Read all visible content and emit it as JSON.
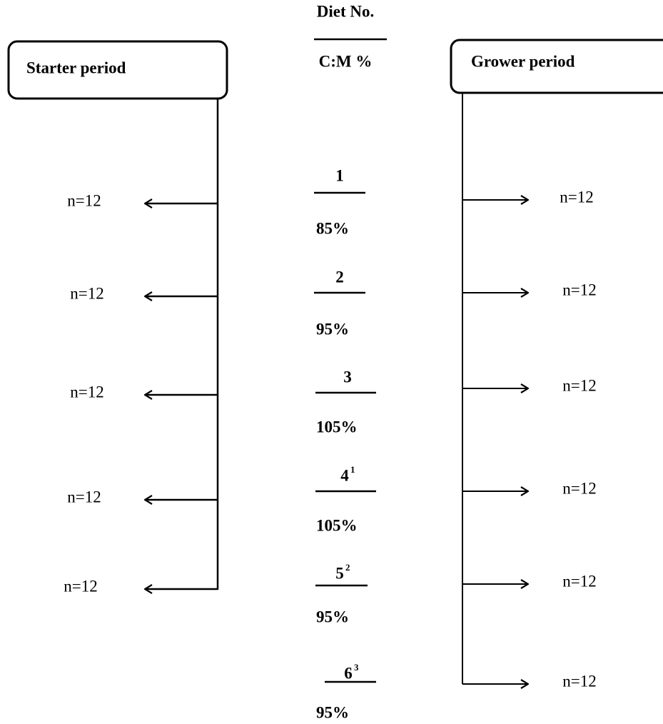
{
  "header": {
    "top": "Diet No.",
    "bottom": "C:M %"
  },
  "starter": {
    "title": "Starter period",
    "groups": [
      "n=12",
      "n=12",
      "n=12",
      "n=12",
      "n=12"
    ]
  },
  "grower": {
    "title": "Grower period",
    "groups": [
      "n=12",
      "n=12",
      "n=12",
      "n=12",
      "n=12",
      "n=12"
    ]
  },
  "diets": [
    {
      "number": "1",
      "ratio": "85%"
    },
    {
      "number": "2",
      "ratio": "95%"
    },
    {
      "number": "3",
      "ratio": "105%"
    },
    {
      "number": "4",
      "note": "1",
      "ratio": "105%"
    },
    {
      "number": "5",
      "note": "2",
      "ratio": "95%"
    },
    {
      "number": "6",
      "note": "3",
      "ratio": "95%"
    }
  ]
}
